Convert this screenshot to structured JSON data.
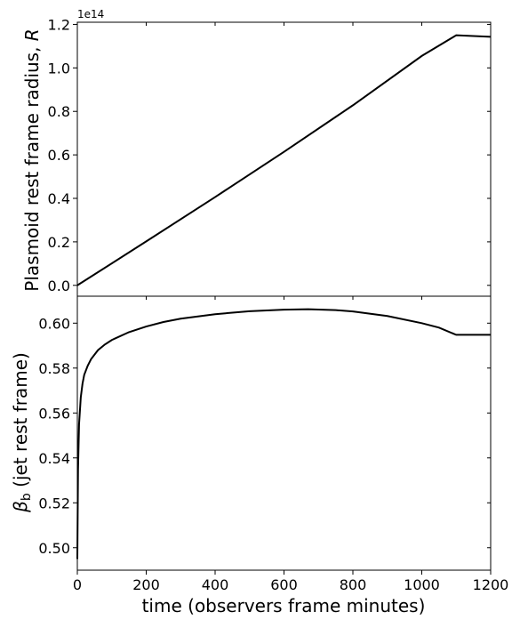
{
  "chart_data": [
    {
      "type": "line",
      "panel": "top",
      "ylabel": "Plasmoid rest frame radius, R",
      "ylabel_text": "Plasmoid rest frame radius, ",
      "ylabel_symbol": "R",
      "offset_text": "1e14",
      "xlim": [
        0,
        1200
      ],
      "ylim": [
        -0.05,
        1.21
      ],
      "yticks": [
        0.0,
        0.2,
        0.4,
        0.6,
        0.8,
        1.0,
        1.2
      ],
      "ytick_labels": [
        "0.0",
        "0.2",
        "0.4",
        "0.6",
        "0.8",
        "1.0",
        "1.2"
      ],
      "series": [
        {
          "x": [
            0,
            200,
            400,
            600,
            800,
            1000,
            1100,
            1200
          ],
          "y": [
            0.0,
            0.202,
            0.406,
            0.614,
            0.828,
            1.055,
            1.15,
            1.143
          ]
        }
      ]
    },
    {
      "type": "line",
      "panel": "bottom",
      "ylabel": "βb (jet rest frame)",
      "ylabel_symbol": "β",
      "ylabel_subscript": "b",
      "ylabel_rest": " (jet rest frame)",
      "xlabel": "time (observers frame minutes)",
      "xlim": [
        0,
        1200
      ],
      "ylim": [
        0.49,
        0.612
      ],
      "xticks": [
        0,
        200,
        400,
        600,
        800,
        1000,
        1200
      ],
      "xtick_labels": [
        "0",
        "200",
        "400",
        "600",
        "800",
        "1000",
        "1200"
      ],
      "yticks": [
        0.5,
        0.52,
        0.54,
        0.56,
        0.58,
        0.6
      ],
      "ytick_labels": [
        "0.50",
        "0.52",
        "0.54",
        "0.56",
        "0.58",
        "0.60"
      ],
      "series": [
        {
          "x": [
            0,
            2,
            5,
            10,
            15,
            20,
            30,
            40,
            50,
            60,
            80,
            100,
            150,
            200,
            250,
            300,
            400,
            500,
            600,
            670,
            750,
            800,
            900,
            1000,
            1050,
            1100,
            1150,
            1200
          ],
          "y": [
            0.495,
            0.535,
            0.555,
            0.567,
            0.573,
            0.577,
            0.581,
            0.584,
            0.586,
            0.588,
            0.5905,
            0.5925,
            0.596,
            0.5985,
            0.6005,
            0.602,
            0.604,
            0.6053,
            0.606,
            0.6062,
            0.6058,
            0.6052,
            0.6032,
            0.6,
            0.598,
            0.5948,
            0.5948,
            0.5948
          ]
        }
      ]
    }
  ]
}
